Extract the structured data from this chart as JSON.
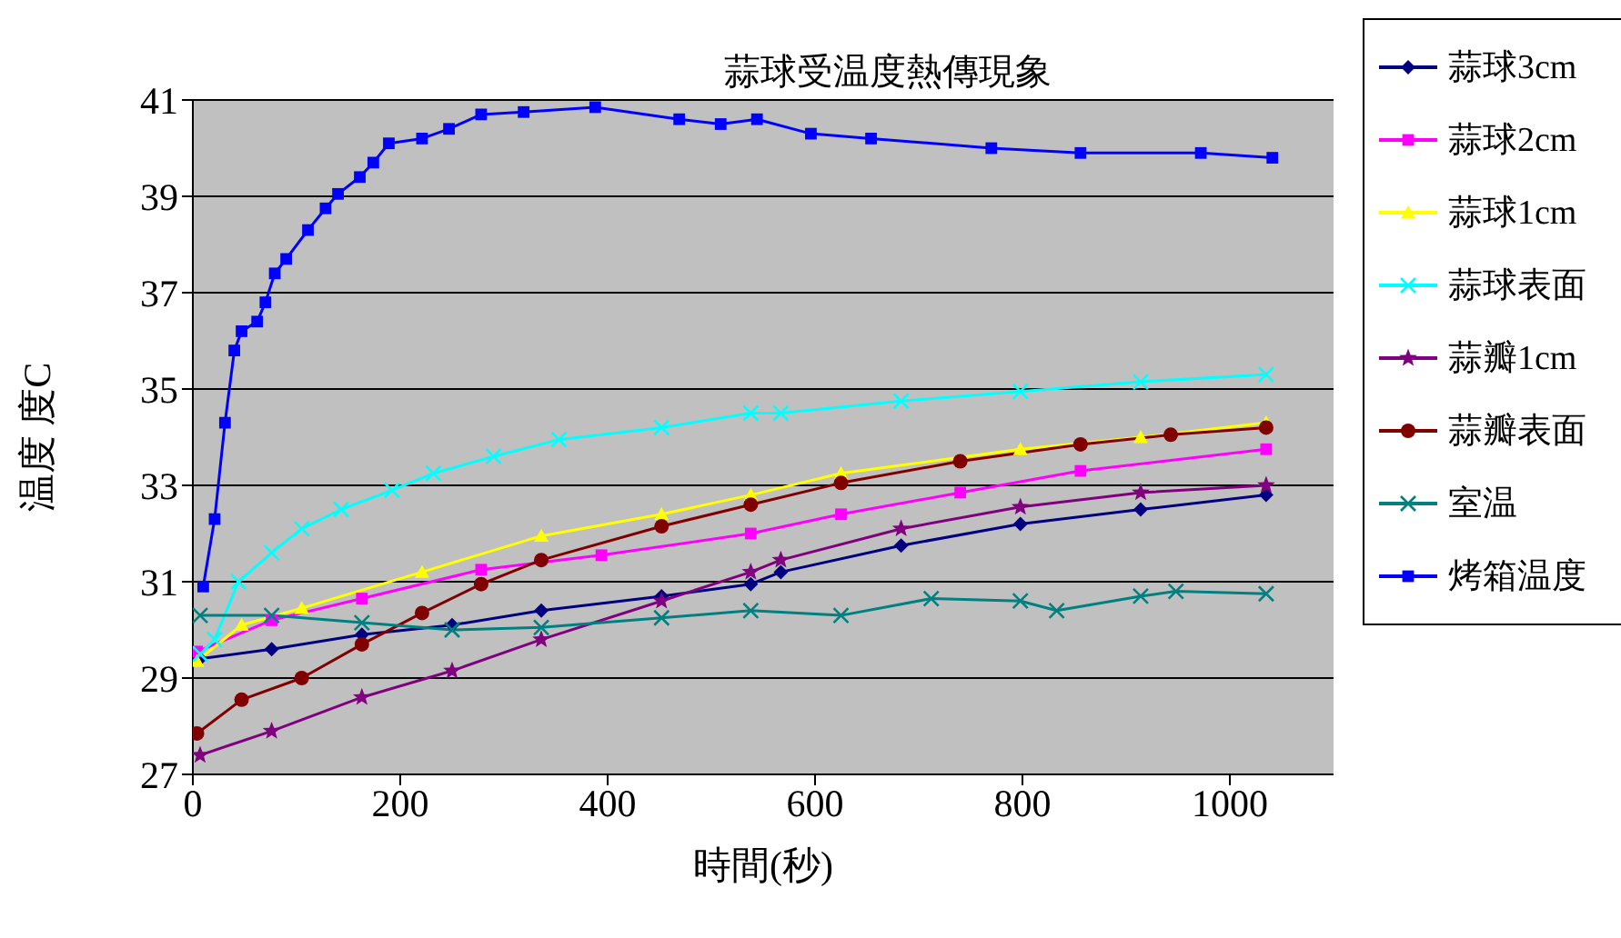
{
  "chart_data": {
    "type": "line",
    "title": "蒜球受温度熱傳現象",
    "xlabel": "時間(秒)",
    "ylabel": "温度 度C",
    "xlim": [
      0,
      1100
    ],
    "xticks": [
      0,
      200,
      400,
      600,
      800,
      1000
    ],
    "ylim": [
      27,
      41
    ],
    "yticks": [
      27,
      29,
      31,
      33,
      35,
      37,
      39,
      41
    ],
    "grid": "y",
    "legend": "right",
    "series": [
      {
        "name": "蒜球3cm",
        "color": "#000080",
        "marker": "diamond",
        "x": [
          7,
          76,
          163,
          250,
          336,
          452,
          538,
          567,
          683,
          798,
          914,
          1035
        ],
        "values": [
          29.4,
          29.6,
          29.9,
          30.1,
          30.4,
          30.7,
          30.95,
          31.2,
          31.75,
          32.2,
          32.5,
          32.8
        ]
      },
      {
        "name": "蒜球2cm",
        "color": "#ff00ff",
        "marker": "square",
        "x": [
          4,
          76,
          163,
          278,
          394,
          538,
          625,
          740,
          856,
          1035
        ],
        "values": [
          29.55,
          30.2,
          30.65,
          31.25,
          31.55,
          32.0,
          32.4,
          32.85,
          33.3,
          33.75
        ]
      },
      {
        "name": "蒜球1cm",
        "color": "#ffff00",
        "marker": "triangle",
        "x": [
          4,
          47,
          105,
          221,
          336,
          452,
          538,
          625,
          798,
          914,
          1035
        ],
        "values": [
          29.35,
          30.1,
          30.45,
          31.2,
          31.95,
          32.4,
          32.8,
          33.25,
          33.75,
          34.0,
          34.3
        ]
      },
      {
        "name": "蒜球表面",
        "color": "#00ffff",
        "marker": "cross",
        "x": [
          7,
          21,
          44,
          76,
          105,
          143,
          192,
          232,
          290,
          353,
          452,
          538,
          567,
          683,
          798,
          914,
          1035
        ],
        "values": [
          29.5,
          29.8,
          31.0,
          31.6,
          32.1,
          32.5,
          32.9,
          33.25,
          33.6,
          33.95,
          34.2,
          34.5,
          34.5,
          34.75,
          34.95,
          35.15,
          35.3
        ]
      },
      {
        "name": "蒜瓣1cm",
        "color": "#800080",
        "marker": "star",
        "x": [
          7,
          76,
          163,
          250,
          336,
          452,
          538,
          567,
          683,
          798,
          914,
          1035
        ],
        "values": [
          27.4,
          27.9,
          28.6,
          29.15,
          29.8,
          30.6,
          31.2,
          31.45,
          32.1,
          32.55,
          32.85,
          33.0
        ]
      },
      {
        "name": "蒜瓣表面",
        "color": "#800000",
        "marker": "circle",
        "x": [
          4,
          47,
          105,
          163,
          221,
          278,
          336,
          452,
          538,
          625,
          740,
          856,
          943,
          1035
        ],
        "values": [
          27.85,
          28.55,
          29.0,
          29.7,
          30.35,
          30.95,
          31.45,
          32.15,
          32.6,
          33.05,
          33.5,
          33.85,
          34.05,
          34.2
        ]
      },
      {
        "name": "室温",
        "color": "#008080",
        "marker": "cross",
        "x": [
          7,
          76,
          163,
          250,
          336,
          452,
          538,
          625,
          712,
          798,
          833,
          914,
          948,
          1035
        ],
        "values": [
          30.3,
          30.3,
          30.15,
          30.0,
          30.05,
          30.25,
          30.4,
          30.3,
          30.65,
          30.6,
          30.4,
          30.7,
          30.8,
          30.75
        ]
      },
      {
        "name": "烤箱温度",
        "color": "#0000ff",
        "marker": "square",
        "x": [
          10,
          21,
          31,
          40,
          47,
          62,
          70,
          79,
          90,
          111,
          128,
          140,
          161,
          174,
          189,
          221,
          247,
          278,
          319,
          388,
          469,
          509,
          544,
          596,
          654,
          770,
          856,
          972,
          1041
        ],
        "values": [
          30.9,
          32.3,
          34.3,
          35.8,
          36.2,
          36.4,
          36.8,
          37.4,
          37.7,
          38.3,
          38.75,
          39.05,
          39.4,
          39.7,
          40.1,
          40.2,
          40.4,
          40.7,
          40.75,
          40.85,
          40.6,
          40.5,
          40.6,
          40.3,
          40.2,
          40.0,
          39.9,
          39.9,
          39.8
        ]
      }
    ]
  }
}
